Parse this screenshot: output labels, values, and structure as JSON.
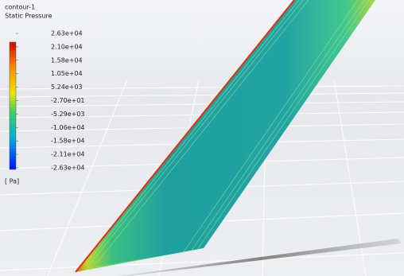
{
  "legend": {
    "title": "contour-1",
    "variable": "Static Pressure",
    "labels": [
      "2.63e+04",
      "2.10e+04",
      "1.58e+04",
      "1.05e+04",
      "5.24e+03",
      "-2.70e+01",
      "-5.29e+03",
      "-1.06e+04",
      "-1.58e+04",
      "-2.11e+04",
      "-2.63e+04"
    ],
    "unit": "[ Pa]"
  }
}
